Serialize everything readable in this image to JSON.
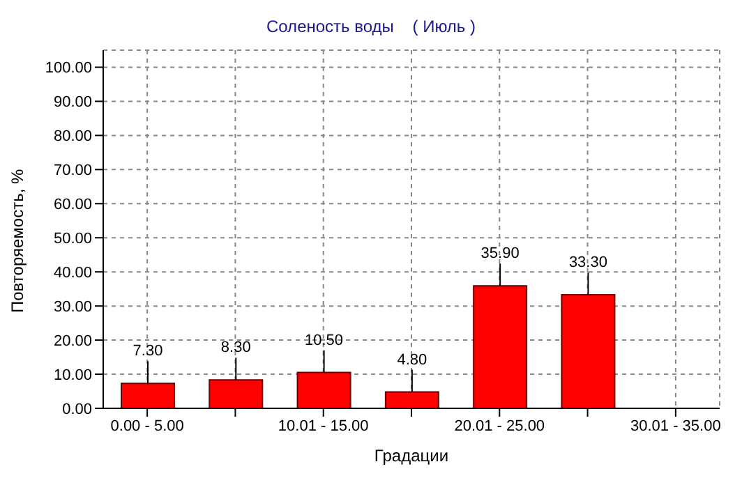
{
  "chart_data": {
    "type": "bar",
    "title": "Соленость воды    ( Июль )",
    "xlabel": "Градации",
    "ylabel": "Повторяемость, %",
    "categories": [
      "0.00 - 5.00",
      null,
      "10.01 - 15.00",
      null,
      "20.01 - 25.00",
      null,
      "30.01 - 35.00"
    ],
    "values": [
      7.3,
      8.3,
      10.5,
      4.8,
      35.9,
      33.3,
      null
    ],
    "value_labels": [
      "7.30",
      "8.30",
      "10.50",
      "4.80",
      "35.90",
      "33.30",
      null
    ],
    "color": "#ff0000",
    "ylim": [
      0,
      105
    ],
    "yticks": [
      {
        "value": 0,
        "label": "0.00"
      },
      {
        "value": 10,
        "label": "10.00"
      },
      {
        "value": 20,
        "label": "20.00"
      },
      {
        "value": 30,
        "label": "30.00"
      },
      {
        "value": 40,
        "label": "40.00"
      },
      {
        "value": 50,
        "label": "50.00"
      },
      {
        "value": 60,
        "label": "60.00"
      },
      {
        "value": 70,
        "label": "70.00"
      },
      {
        "value": 80,
        "label": "80.00"
      },
      {
        "value": 90,
        "label": "90.00"
      },
      {
        "value": 100,
        "label": "100.00"
      }
    ],
    "grid": true
  }
}
